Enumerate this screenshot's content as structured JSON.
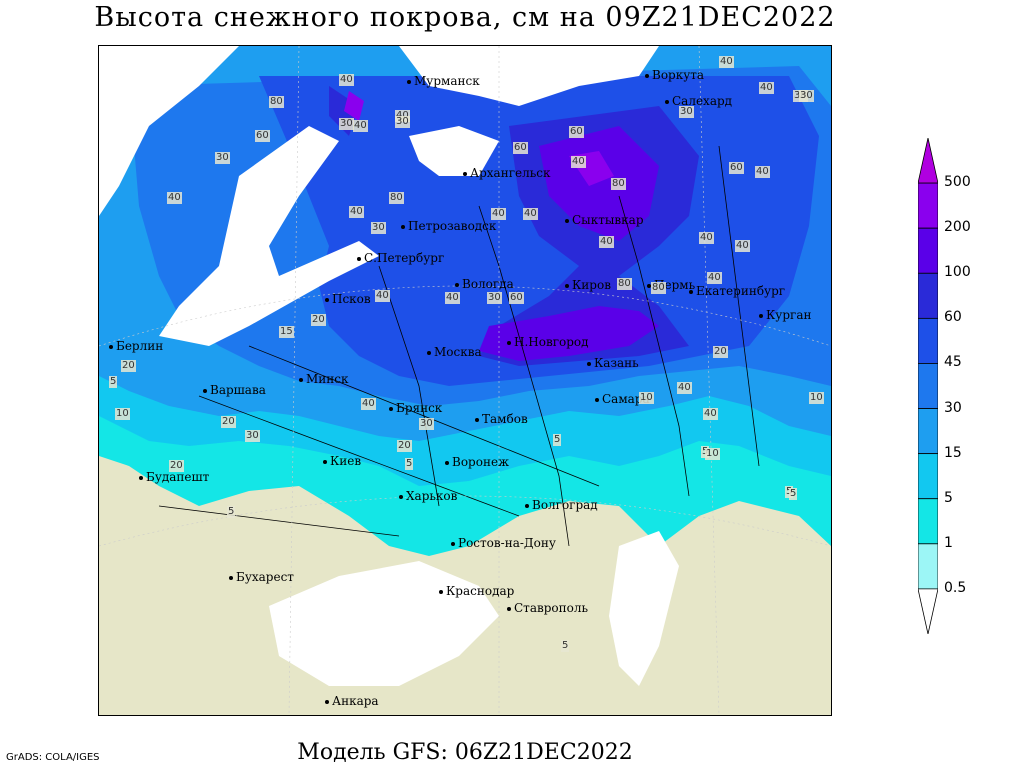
{
  "title": "Высота снежного покрова, см на 09Z21DEC2022",
  "subtitle": "Модель GFS: 06Z21DEC2022",
  "credit": "GrADS: COLA/IGES",
  "legend": {
    "levels": [
      "500",
      "200",
      "100",
      "60",
      "45",
      "30",
      "15",
      "5",
      "1",
      "0.5"
    ],
    "colors": [
      "#b000e0",
      "#8a00ee",
      "#5a00e8",
      "#2a2ad8",
      "#1e50e8",
      "#1e78ee",
      "#1e9ef0",
      "#12c8f0",
      "#14e6e6",
      "#9cf6f6",
      "#ffffff"
    ]
  },
  "colors": {
    "land_no_snow": "#e6e6c8",
    "sea": "#ffffff"
  },
  "cities": [
    {
      "name": "Мурманск"
    },
    {
      "name": "Воркута"
    },
    {
      "name": "Салехард"
    },
    {
      "name": "Архангельск"
    },
    {
      "name": "Петрозаводск"
    },
    {
      "name": "Сыктывкар"
    },
    {
      "name": "С.Петербург"
    },
    {
      "name": "Вологда"
    },
    {
      "name": "Киров"
    },
    {
      "name": "Пермь"
    },
    {
      "name": "Екатеринбург"
    },
    {
      "name": "Курган"
    },
    {
      "name": "Псков"
    },
    {
      "name": "Берлин"
    },
    {
      "name": "Москва"
    },
    {
      "name": "Н.Новгород"
    },
    {
      "name": "Казань"
    },
    {
      "name": "Варшава"
    },
    {
      "name": "Минск"
    },
    {
      "name": "Брянск"
    },
    {
      "name": "Тамбов"
    },
    {
      "name": "Самара"
    },
    {
      "name": "Киев"
    },
    {
      "name": "Воронеж"
    },
    {
      "name": "Будапешт"
    },
    {
      "name": "Харьков"
    },
    {
      "name": "Волгоград"
    },
    {
      "name": "Ростов-на-Дону"
    },
    {
      "name": "Бухарест"
    },
    {
      "name": "Краснодар"
    },
    {
      "name": "Ставрополь"
    },
    {
      "name": "Анкара"
    }
  ],
  "contour_labels": [
    {
      "v": "40"
    },
    {
      "v": "40"
    },
    {
      "v": "80"
    },
    {
      "v": "30"
    },
    {
      "v": "40"
    },
    {
      "v": "30"
    },
    {
      "v": "40"
    },
    {
      "v": "30"
    },
    {
      "v": "30"
    },
    {
      "v": "60"
    },
    {
      "v": "60"
    },
    {
      "v": "40"
    },
    {
      "v": "80"
    },
    {
      "v": "60"
    },
    {
      "v": "40"
    },
    {
      "v": "30"
    },
    {
      "v": "40"
    },
    {
      "v": "60"
    },
    {
      "v": "30"
    },
    {
      "v": "40"
    },
    {
      "v": "40"
    },
    {
      "v": "80"
    },
    {
      "v": "40"
    },
    {
      "v": "40"
    },
    {
      "v": "40"
    },
    {
      "v": "40"
    },
    {
      "v": "30"
    },
    {
      "v": "60"
    },
    {
      "v": "80"
    },
    {
      "v": "80"
    },
    {
      "v": "40"
    },
    {
      "v": "40"
    },
    {
      "v": "15"
    },
    {
      "v": "20"
    },
    {
      "v": "40"
    },
    {
      "v": "30"
    },
    {
      "v": "40"
    },
    {
      "v": "10"
    },
    {
      "v": "20"
    },
    {
      "v": "40"
    },
    {
      "v": "20"
    },
    {
      "v": "5"
    },
    {
      "v": "10"
    },
    {
      "v": "20"
    },
    {
      "v": "30"
    },
    {
      "v": "40"
    },
    {
      "v": "30"
    },
    {
      "v": "20"
    },
    {
      "v": "20"
    },
    {
      "v": "5"
    },
    {
      "v": "5"
    },
    {
      "v": "40"
    },
    {
      "v": "10"
    },
    {
      "v": "5"
    },
    {
      "v": "10"
    },
    {
      "v": "5"
    },
    {
      "v": "5"
    },
    {
      "v": "5"
    },
    {
      "v": "5"
    }
  ]
}
